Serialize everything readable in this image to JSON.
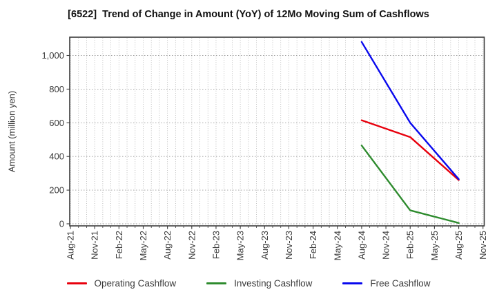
{
  "chart_data": {
    "type": "line",
    "title": "[6522]  Trend of Change in Amount (YoY) of 12Mo Moving Sum of Cashflows",
    "ylabel": "Amount (million yen)",
    "xlabel": "",
    "x_tick_labels": [
      "Aug-21",
      "Nov-21",
      "Feb-22",
      "May-22",
      "Aug-22",
      "Nov-22",
      "Feb-23",
      "May-23",
      "Aug-23",
      "Nov-23",
      "Feb-24",
      "May-24",
      "Aug-24",
      "Nov-24",
      "Feb-25",
      "May-25",
      "Aug-25",
      "Nov-25"
    ],
    "y_ticks": [
      0,
      200,
      400,
      600,
      800,
      1000
    ],
    "y_tick_labels": [
      "0",
      "200",
      "400",
      "600",
      "800",
      "1,000"
    ],
    "ylim": [
      -15,
      1110
    ],
    "grid": true,
    "legend_position": "bottom",
    "series": [
      {
        "name": "Operating Cashflow",
        "color": "#e8000d",
        "points": [
          {
            "month": "Aug-24",
            "value": 615
          },
          {
            "month": "Feb-25",
            "value": 515
          },
          {
            "month": "Aug-25",
            "value": 260
          }
        ]
      },
      {
        "name": "Investing Cashflow",
        "color": "#2e8b2e",
        "points": [
          {
            "month": "Aug-24",
            "value": 465
          },
          {
            "month": "Feb-25",
            "value": 80
          },
          {
            "month": "Aug-25",
            "value": 5
          }
        ]
      },
      {
        "name": "Free Cashflow",
        "color": "#0808ee",
        "points": [
          {
            "month": "Aug-24",
            "value": 1080
          },
          {
            "month": "Feb-25",
            "value": 600
          },
          {
            "month": "Aug-25",
            "value": 265
          }
        ]
      }
    ]
  }
}
